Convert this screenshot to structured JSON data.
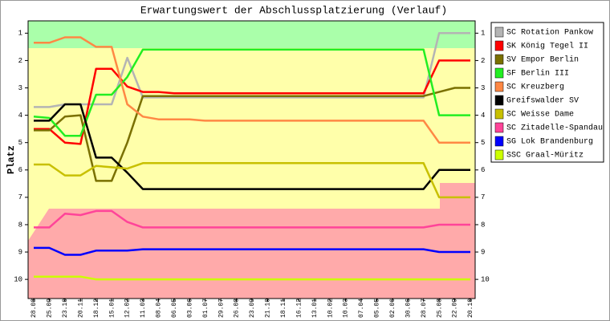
{
  "chart_data": {
    "type": "line",
    "title": "Erwartungswert der Abschlussplatzierung (Verlauf)",
    "y_label": "Platz",
    "categories": [
      "28.08",
      "25.09",
      "23.10",
      "20.11",
      "18.12",
      "15.01",
      "12.02",
      "11.03",
      "08.04",
      "06.05",
      "03.06",
      "01.07",
      "29.07",
      "26.08",
      "23.09",
      "21.10",
      "18.11",
      "16.12",
      "13.01",
      "10.02",
      "10.03",
      "07.04",
      "05.05",
      "02.06",
      "30.06",
      "28.07",
      "25.08",
      "22.09",
      "20.10"
    ],
    "ylim": [
      10.7,
      0.55
    ],
    "yticks": [
      1,
      2,
      3,
      4,
      5,
      6,
      7,
      8,
      9,
      10
    ],
    "series": [
      {
        "name": "SC Rotation Pankow",
        "color": "#b4b4b4",
        "values": [
          3.7,
          3.7,
          3.6,
          3.6,
          3.6,
          3.6,
          1.9,
          3.35,
          3.35,
          3.35,
          3.35,
          3.35,
          3.35,
          3.35,
          3.35,
          3.35,
          3.35,
          3.35,
          3.35,
          3.35,
          3.35,
          3.35,
          3.35,
          3.35,
          3.35,
          3.35,
          1.0,
          1.0,
          1.0
        ]
      },
      {
        "name": "SK König Tegel II",
        "color": "#ff0000",
        "values": [
          4.5,
          4.5,
          5.0,
          5.05,
          2.3,
          2.3,
          2.95,
          3.15,
          3.15,
          3.2,
          3.2,
          3.2,
          3.2,
          3.2,
          3.2,
          3.2,
          3.2,
          3.2,
          3.2,
          3.2,
          3.2,
          3.2,
          3.2,
          3.2,
          3.2,
          3.2,
          2.0,
          2.0,
          2.0
        ]
      },
      {
        "name": "SV Empor Berlin",
        "color": "#7a7000",
        "values": [
          4.55,
          4.55,
          4.05,
          4.0,
          6.4,
          6.4,
          5.0,
          3.3,
          3.3,
          3.3,
          3.3,
          3.3,
          3.3,
          3.3,
          3.3,
          3.3,
          3.3,
          3.3,
          3.3,
          3.3,
          3.3,
          3.3,
          3.3,
          3.3,
          3.3,
          3.3,
          3.15,
          3.0,
          3.0
        ]
      },
      {
        "name": "SF Berlin III",
        "color": "#22ee22",
        "values": [
          4.05,
          4.1,
          4.75,
          4.75,
          3.25,
          3.25,
          2.6,
          1.6,
          1.6,
          1.6,
          1.6,
          1.6,
          1.6,
          1.6,
          1.6,
          1.6,
          1.6,
          1.6,
          1.6,
          1.6,
          1.6,
          1.6,
          1.6,
          1.6,
          1.6,
          1.6,
          4.0,
          4.0,
          4.0
        ]
      },
      {
        "name": "SC Kreuzberg",
        "color": "#ff8844",
        "values": [
          1.35,
          1.35,
          1.15,
          1.15,
          1.5,
          1.5,
          3.6,
          4.05,
          4.15,
          4.15,
          4.15,
          4.2,
          4.2,
          4.2,
          4.2,
          4.2,
          4.2,
          4.2,
          4.2,
          4.2,
          4.2,
          4.2,
          4.2,
          4.2,
          4.2,
          4.2,
          5.0,
          5.0,
          5.0
        ]
      },
      {
        "name": "Greifswalder SV",
        "color": "#000000",
        "values": [
          4.2,
          4.2,
          3.6,
          3.6,
          5.55,
          5.55,
          6.1,
          6.7,
          6.7,
          6.7,
          6.7,
          6.7,
          6.7,
          6.7,
          6.7,
          6.7,
          6.7,
          6.7,
          6.7,
          6.7,
          6.7,
          6.7,
          6.7,
          6.7,
          6.7,
          6.7,
          6.0,
          6.0,
          6.0
        ]
      },
      {
        "name": "SC Weisse Dame",
        "color": "#c8c000",
        "values": [
          5.8,
          5.8,
          6.2,
          6.2,
          5.85,
          5.9,
          5.95,
          5.75,
          5.75,
          5.75,
          5.75,
          5.75,
          5.75,
          5.75,
          5.75,
          5.75,
          5.75,
          5.75,
          5.75,
          5.75,
          5.75,
          5.75,
          5.75,
          5.75,
          5.75,
          5.75,
          7.0,
          7.0,
          7.0
        ]
      },
      {
        "name": "SC Zitadelle-Spandau",
        "color": "#ff4499",
        "values": [
          8.1,
          8.1,
          7.6,
          7.65,
          7.5,
          7.5,
          7.9,
          8.1,
          8.1,
          8.1,
          8.1,
          8.1,
          8.1,
          8.1,
          8.1,
          8.1,
          8.1,
          8.1,
          8.1,
          8.1,
          8.1,
          8.1,
          8.1,
          8.1,
          8.1,
          8.1,
          8.0,
          8.0,
          8.0
        ]
      },
      {
        "name": "SG Lok Brandenburg",
        "color": "#0000ff",
        "values": [
          8.85,
          8.85,
          9.1,
          9.1,
          8.95,
          8.95,
          8.95,
          8.9,
          8.9,
          8.9,
          8.9,
          8.9,
          8.9,
          8.9,
          8.9,
          8.9,
          8.9,
          8.9,
          8.9,
          8.9,
          8.9,
          8.9,
          8.9,
          8.9,
          8.9,
          8.9,
          9.0,
          9.0,
          9.0
        ]
      },
      {
        "name": "SSC Graal-Müritz",
        "color": "#ccff00",
        "values": [
          9.9,
          9.9,
          9.9,
          9.9,
          10.0,
          10.0,
          10.0,
          10.0,
          10.0,
          10.0,
          10.0,
          10.0,
          10.0,
          10.0,
          10.0,
          10.0,
          10.0,
          10.0,
          10.0,
          10.0,
          10.0,
          10.0,
          10.0,
          10.0,
          10.0,
          10.0,
          10.0,
          10.0,
          10.0
        ]
      }
    ]
  }
}
